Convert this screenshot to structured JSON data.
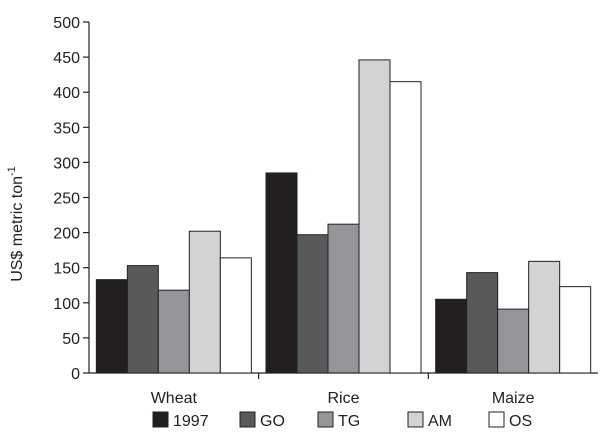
{
  "chart_data": {
    "type": "bar",
    "title": "",
    "ylabel": "US$ metric ton",
    "ylabel_superscript": "-1",
    "xlabel": "",
    "ylim": [
      0,
      500
    ],
    "yticks": [
      0,
      50,
      100,
      150,
      200,
      250,
      300,
      350,
      400,
      450,
      500
    ],
    "categories": [
      "Wheat",
      "Rice",
      "Maize"
    ],
    "series": [
      {
        "name": "1997",
        "color": "#231f20",
        "values": [
          133,
          285,
          105
        ]
      },
      {
        "name": "GO",
        "color": "#58595b",
        "values": [
          153,
          197,
          143
        ]
      },
      {
        "name": "TG",
        "color": "#939598",
        "values": [
          118,
          212,
          91
        ]
      },
      {
        "name": "AM",
        "color": "#d1d3d4",
        "values": [
          202,
          446,
          159
        ]
      },
      {
        "name": "OS",
        "color": "#ffffff",
        "values": [
          164,
          415,
          123
        ]
      }
    ],
    "grid": false,
    "legend_position": "bottom"
  }
}
